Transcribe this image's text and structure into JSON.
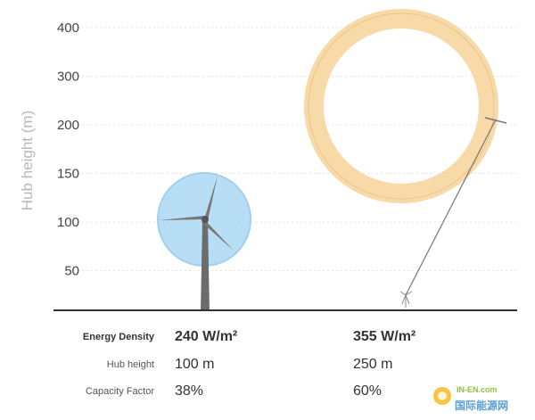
{
  "chart_data": {
    "type": "diagram",
    "ylabel": "Hub height (m)",
    "y_ticks": [
      400,
      300,
      200,
      150,
      100,
      50
    ],
    "grid": true,
    "turbines": [
      {
        "name": "turbine-small",
        "hub_height_m": 100,
        "energy_density": "240 W/m²",
        "hub_height_text": "100 m",
        "capacity_factor": "38%",
        "rotor_color": "#9fd3f2"
      },
      {
        "name": "turbine-large",
        "hub_height_m": 250,
        "energy_density": "355 W/m²",
        "hub_height_text": "250 m",
        "capacity_factor": "60%",
        "rotor_color": "#f7d49a"
      }
    ],
    "table": {
      "row_labels": [
        "Energy Density",
        "Hub height",
        "Capacity Factor"
      ]
    }
  },
  "logo": {
    "en": "IN-EN.com",
    "cn": "国际能源网"
  }
}
